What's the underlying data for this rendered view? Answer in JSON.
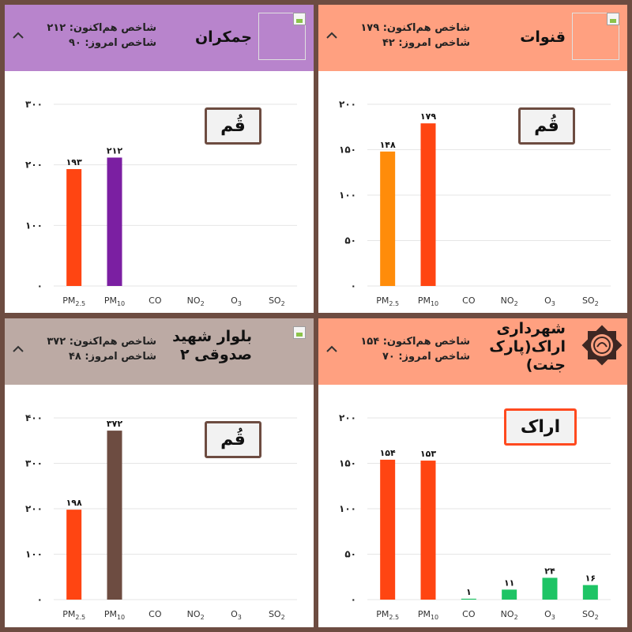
{
  "colors": {
    "border": "#6d4c41",
    "pm25_red": "#ff4512",
    "pm25_orange": "#ff8c0a",
    "purple": "#7b1fa2",
    "brown": "#6d4c41",
    "green": "#1ec465",
    "grid": "#e6e6e6",
    "header_purple": "#b884cc",
    "header_orange": "#ffa080",
    "header_brown": "#bcaaa4"
  },
  "pollutant_labels": [
    {
      "base": "PM",
      "sub": "2.5"
    },
    {
      "base": "PM",
      "sub": "10"
    },
    {
      "base": "CO",
      "sub": ""
    },
    {
      "base": "NO",
      "sub": "2"
    },
    {
      "base": "O",
      "sub": "3"
    },
    {
      "base": "SO",
      "sub": "2"
    }
  ],
  "cards": [
    {
      "station_name": "جمکران",
      "current_index_label": "شاخص هم‌اکنون: ۲۱۲",
      "today_index_label": "شاخص امروز: ۹۰",
      "city": "قُم",
      "image_icon": "broken-image-icon",
      "header_color": "#b884cc"
    },
    {
      "station_name": "قنوات",
      "current_index_label": "شاخص هم‌اکنون: ۱۷۹",
      "today_index_label": "شاخص امروز: ۴۲",
      "city": "قُم",
      "image_icon": "broken-image-icon",
      "header_color": "#ffa080"
    },
    {
      "station_name": "بلوار شهید صدوقی ۲",
      "current_index_label": "شاخص هم‌اکنون: ۳۷۲",
      "today_index_label": "شاخص امروز: ۴۸",
      "city": "قُم",
      "image_icon": "broken-image-icon",
      "header_color": "#bcaaa4"
    },
    {
      "station_name": "شهرداری اراک(پارک جنت)",
      "current_index_label": "شاخص هم‌اکنون: ۱۵۴",
      "today_index_label": "شاخص امروز: ۷۰",
      "city": "اراک",
      "image_icon": "arak-municipality-logo-icon",
      "header_color": "#ffa080"
    }
  ],
  "chart_data": [
    {
      "type": "bar",
      "categories": [
        "PM2.5",
        "PM10",
        "CO",
        "NO2",
        "O3",
        "SO2"
      ],
      "values": [
        193,
        212,
        null,
        null,
        null,
        null
      ],
      "value_labels": [
        "۱۹۳",
        "۲۱۲",
        "",
        "",
        "",
        ""
      ],
      "bar_colors": [
        "#ff4512",
        "#7b1fa2",
        "",
        "",
        "",
        ""
      ],
      "ylim": [
        0,
        300
      ],
      "yticks": [
        0,
        100,
        200,
        300
      ],
      "ytick_labels": [
        "۰",
        "۱۰۰",
        "۲۰۰",
        "۳۰۰"
      ],
      "grid": true
    },
    {
      "type": "bar",
      "categories": [
        "PM2.5",
        "PM10",
        "CO",
        "NO2",
        "O3",
        "SO2"
      ],
      "values": [
        148,
        179,
        null,
        null,
        null,
        null
      ],
      "value_labels": [
        "۱۴۸",
        "۱۷۹",
        "",
        "",
        "",
        ""
      ],
      "bar_colors": [
        "#ff8c0a",
        "#ff4512",
        "",
        "",
        "",
        ""
      ],
      "ylim": [
        0,
        200
      ],
      "yticks": [
        0,
        50,
        100,
        150,
        200
      ],
      "ytick_labels": [
        "۰",
        "۵۰",
        "۱۰۰",
        "۱۵۰",
        "۲۰۰"
      ],
      "grid": true
    },
    {
      "type": "bar",
      "categories": [
        "PM2.5",
        "PM10",
        "CO",
        "NO2",
        "O3",
        "SO2"
      ],
      "values": [
        198,
        372,
        null,
        null,
        null,
        null
      ],
      "value_labels": [
        "۱۹۸",
        "۳۷۲",
        "",
        "",
        "",
        ""
      ],
      "bar_colors": [
        "#ff4512",
        "#6d4c41",
        "",
        "",
        "",
        ""
      ],
      "ylim": [
        0,
        400
      ],
      "yticks": [
        0,
        100,
        200,
        300,
        400
      ],
      "ytick_labels": [
        "۰",
        "۱۰۰",
        "۲۰۰",
        "۳۰۰",
        "۴۰۰"
      ],
      "grid": true
    },
    {
      "type": "bar",
      "categories": [
        "PM2.5",
        "PM10",
        "CO",
        "NO2",
        "O3",
        "SO2"
      ],
      "values": [
        154,
        153,
        1,
        11,
        24,
        16
      ],
      "value_labels": [
        "۱۵۴",
        "۱۵۳",
        "۱",
        "۱۱",
        "۲۴",
        "۱۶"
      ],
      "bar_colors": [
        "#ff4512",
        "#ff4512",
        "#1ec465",
        "#1ec465",
        "#1ec465",
        "#1ec465"
      ],
      "ylim": [
        0,
        200
      ],
      "yticks": [
        0,
        50,
        100,
        150,
        200
      ],
      "ytick_labels": [
        "۰",
        "۵۰",
        "۱۰۰",
        "۱۵۰",
        "۲۰۰"
      ],
      "grid": true
    }
  ]
}
